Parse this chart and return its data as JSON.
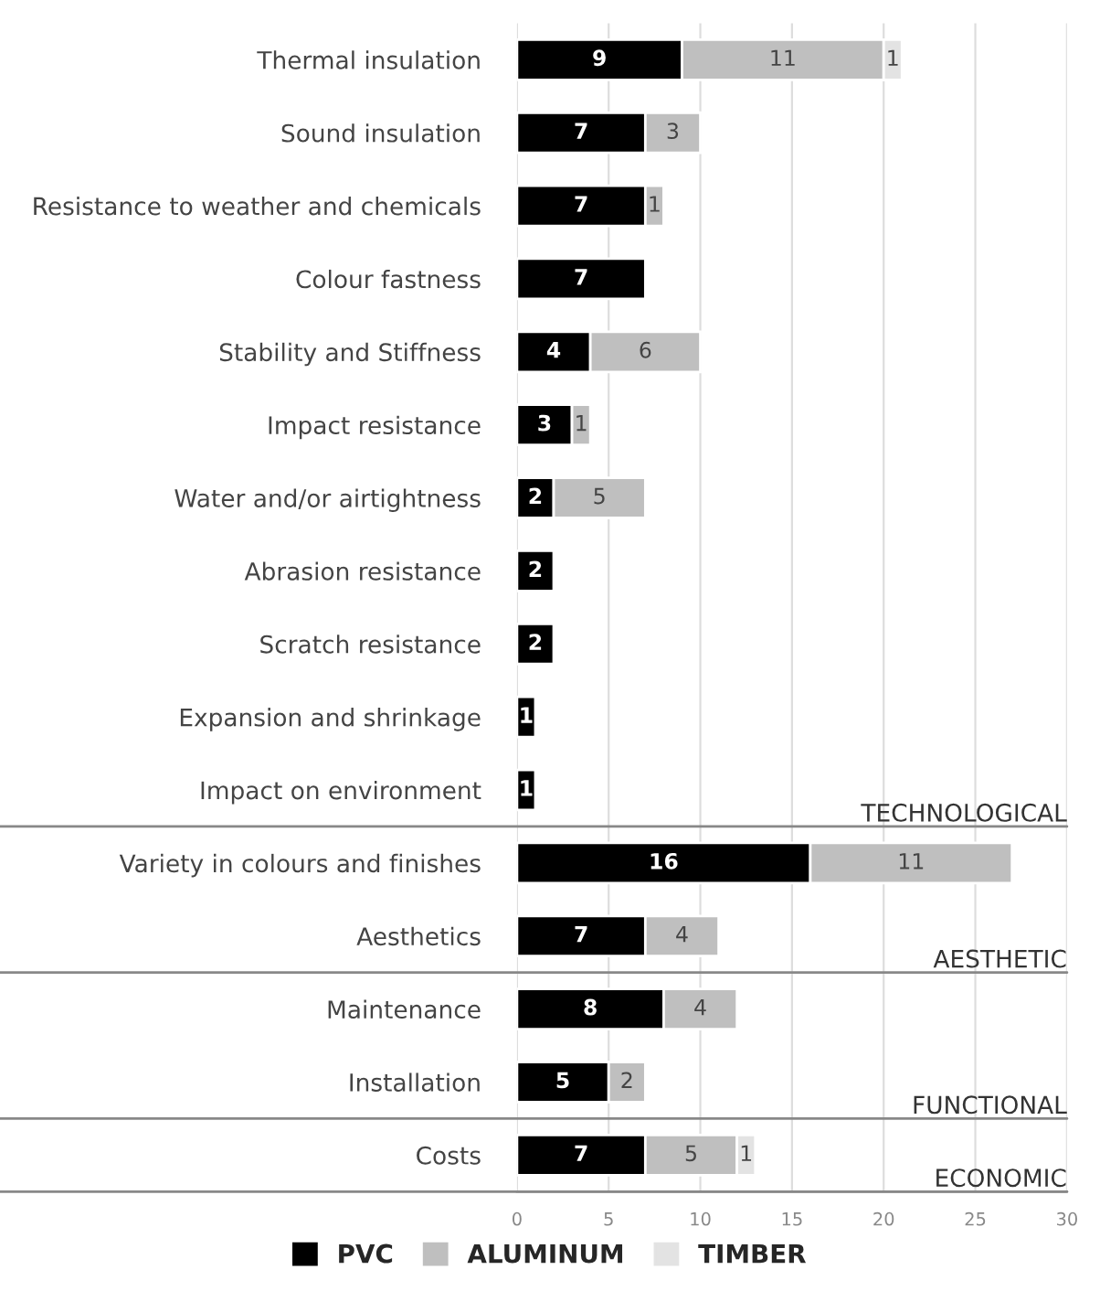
{
  "chart_data": {
    "type": "bar",
    "orientation": "horizontal",
    "stacked": true,
    "data_labels": true,
    "grid": "x",
    "legend": "bottom",
    "categories": [
      "Thermal insulation",
      "Sound insulation",
      "Resistance to weather and chemicals",
      "Colour fastness",
      "Stability and Stiffness",
      "Impact resistance",
      "Water and/or airtightness",
      "Abrasion resistance",
      "Scratch resistance",
      "Expansion and shrinkage",
      "Impact on environment",
      "Variety in colours and finishes",
      "Aesthetics",
      "Maintenance",
      "Installation",
      "Costs"
    ],
    "series": [
      {
        "name": "PVC",
        "color": "#000000",
        "values": [
          9,
          7,
          7,
          7,
          4,
          3,
          2,
          2,
          2,
          1,
          1,
          16,
          7,
          8,
          5,
          7
        ]
      },
      {
        "name": "ALUMINUM",
        "color": "#bfbfbf",
        "values": [
          11,
          3,
          1,
          null,
          6,
          1,
          5,
          null,
          null,
          null,
          null,
          11,
          4,
          4,
          2,
          5
        ]
      },
      {
        "name": "TIMBER",
        "color": "#e3e3e3",
        "values": [
          1,
          null,
          null,
          null,
          null,
          null,
          null,
          null,
          null,
          null,
          null,
          null,
          null,
          null,
          null,
          1
        ]
      }
    ],
    "xlim": [
      0,
      30
    ],
    "xticks": [
      0,
      5,
      10,
      15,
      20,
      25,
      30
    ],
    "annotations": [
      "TECHNOLOGICAL",
      "AESTHETIC",
      "FUNCTIONAL",
      "ECONOMIC"
    ]
  }
}
